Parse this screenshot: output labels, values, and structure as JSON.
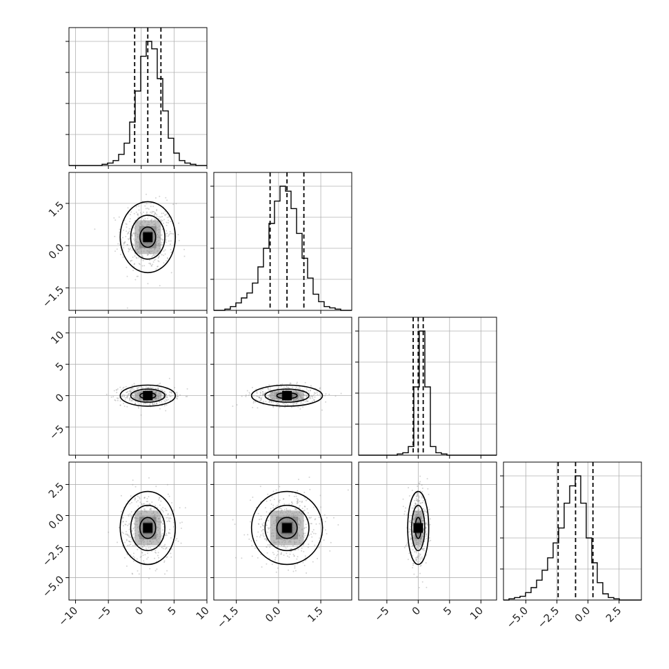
{
  "chart_data": {
    "type": "corner",
    "parameters": 4,
    "style": {
      "histogram_color": "#000000",
      "scatter_color": "#9e9e9e",
      "contour_color": "#000000",
      "grid": true,
      "grid_color": "#b0b0b0",
      "quantile_line_style": "dashed"
    },
    "x_ticks": [
      [
        "−10",
        "−5",
        "0",
        "5",
        "10"
      ],
      [
        "−1.5",
        "0.0",
        "1.5"
      ],
      [
        "−5",
        "0",
        "5",
        "10"
      ],
      [
        "−5.0",
        "−2.5",
        "0.0",
        "2.5"
      ]
    ],
    "y_ticks": {
      "row1": [
        "−1.5",
        "0.0",
        "1.5"
      ],
      "row2": [
        "−5",
        "0",
        "5",
        "10"
      ],
      "row3": [
        "−5.0",
        "−2.5",
        "0.0",
        "2.5"
      ]
    },
    "ranges": [
      [
        -11,
        10
      ],
      [
        -2.3,
        2.6
      ],
      [
        -9.5,
        12.5
      ],
      [
        -6.8,
        4.3
      ]
    ],
    "medians": [
      1.0,
      0.3,
      0.0,
      -1.0
    ],
    "sigmas": [
      2.0,
      0.6,
      0.8,
      1.4
    ],
    "quantiles": [
      [
        -1.0,
        1.0,
        3.0
      ],
      [
        -0.3,
        0.3,
        0.9
      ],
      [
        -0.8,
        0.0,
        0.8
      ],
      [
        -2.4,
        -1.0,
        0.4
      ]
    ],
    "histograms": [
      [
        0,
        0,
        0,
        0,
        0,
        0,
        1,
        2,
        4,
        9,
        18,
        35,
        60,
        88,
        100,
        94,
        70,
        44,
        22,
        10,
        4,
        2,
        1,
        0,
        0
      ],
      [
        0,
        0,
        1,
        3,
        6,
        10,
        14,
        22,
        35,
        50,
        70,
        88,
        100,
        96,
        82,
        62,
        42,
        26,
        13,
        7,
        3,
        2,
        1,
        0,
        0
      ],
      [
        0,
        0,
        0,
        0,
        0,
        0,
        0,
        1,
        2,
        7,
        55,
        100,
        55,
        7,
        2,
        1,
        0,
        0,
        0,
        0,
        0,
        0,
        0,
        0,
        0
      ],
      [
        0,
        1,
        2,
        3,
        6,
        10,
        16,
        24,
        34,
        46,
        58,
        78,
        92,
        100,
        78,
        50,
        30,
        14,
        5,
        2,
        1,
        0,
        0,
        0,
        0
      ]
    ]
  }
}
